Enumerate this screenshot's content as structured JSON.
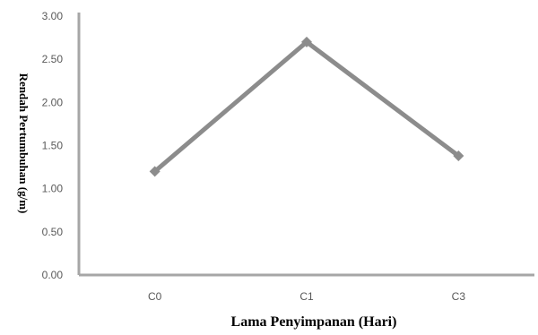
{
  "chart_data": {
    "type": "line",
    "categories": [
      "C0",
      "C1",
      "C3"
    ],
    "series": [
      {
        "values": [
          1.2,
          2.7,
          1.38
        ]
      }
    ],
    "xlabel": "Lama Penyimpanan (Hari)",
    "ylabel": "Rendah Pertumbuhan (g/m)",
    "ylim": [
      0,
      3
    ],
    "yticks": [
      "0.00",
      "0.50",
      "1.00",
      "1.50",
      "2.00",
      "2.50",
      "3.00"
    ],
    "grid": false,
    "line_color": "#8c8c8c",
    "axis_color": "#a6a6a6"
  }
}
